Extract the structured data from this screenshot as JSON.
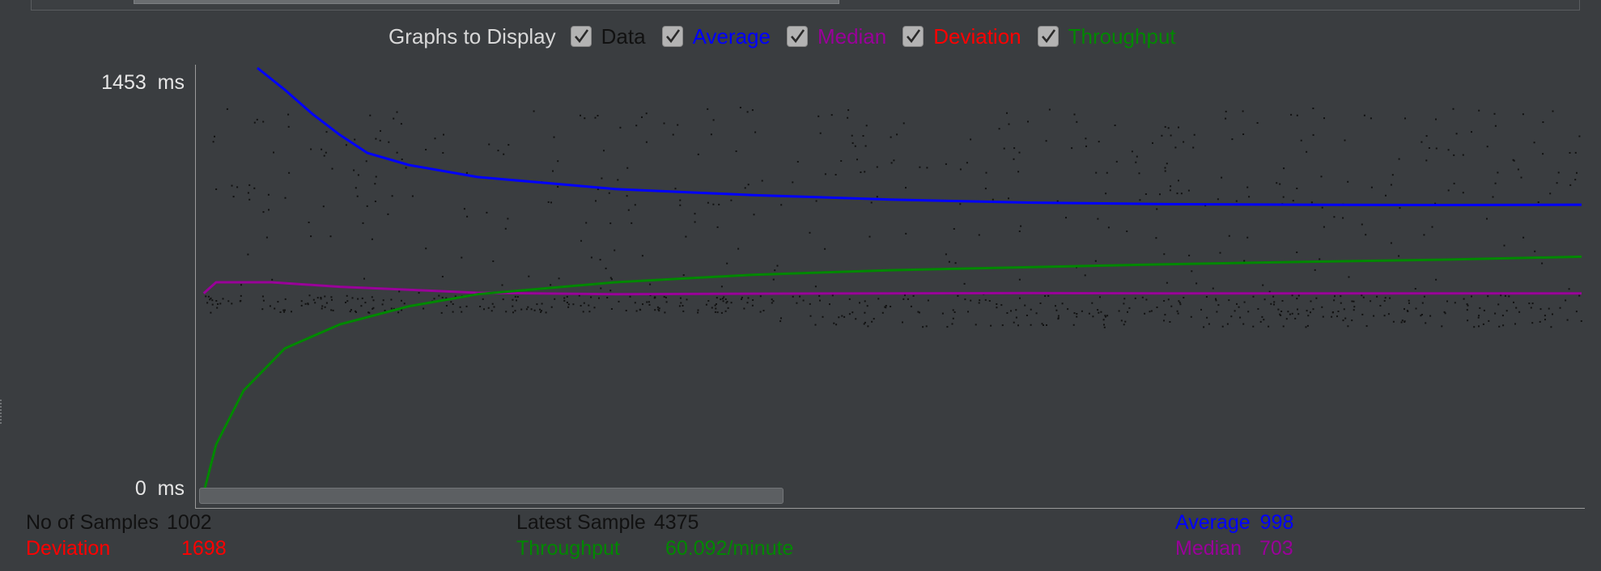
{
  "legend": {
    "title": "Graphs to Display",
    "items": [
      {
        "key": "data",
        "label": "Data",
        "color": "#111111",
        "checked": true
      },
      {
        "key": "average",
        "label": "Average",
        "color": "#0000ff",
        "checked": true
      },
      {
        "key": "median",
        "label": "Median",
        "color": "#990099",
        "checked": true
      },
      {
        "key": "deviation",
        "label": "Deviation",
        "color": "#ff0000",
        "checked": true
      },
      {
        "key": "throughput",
        "label": "Throughput",
        "color": "#008800",
        "checked": true
      }
    ]
  },
  "axis": {
    "y_max_value": "1453",
    "y_min_value": "0",
    "unit": "ms"
  },
  "stats": {
    "samples_label": "No of Samples",
    "samples_value": "1002",
    "deviation_label": "Deviation",
    "deviation_value": "1698",
    "latest_label": "Latest Sample",
    "latest_value": "4375",
    "throughput_label": "Throughput",
    "throughput_value": "60.092/minute",
    "average_label": "Average",
    "average_value": "998",
    "median_label": "Median",
    "median_value": "703"
  },
  "colors": {
    "data": "#111111",
    "average": "#0000ff",
    "median": "#990099",
    "deviation": "#ff0000",
    "throughput": "#008800",
    "label_light": "#e6e6e6"
  },
  "chart_data": {
    "type": "line",
    "ylim": [
      0,
      1453
    ],
    "samples": 1002,
    "series": [
      {
        "name": "Average",
        "x": [
          40,
          60,
          80,
          100,
          120,
          150,
          200,
          250,
          300,
          400,
          500,
          600,
          700,
          800,
          900,
          1002
        ],
        "values": [
          1453,
          1380,
          1300,
          1230,
          1170,
          1130,
          1090,
          1070,
          1050,
          1030,
          1015,
          1005,
          1000,
          998,
          997,
          998
        ]
      },
      {
        "name": "Median",
        "x": [
          1,
          10,
          50,
          100,
          150,
          200,
          300,
          400,
          500,
          600,
          700,
          800,
          900,
          1002
        ],
        "values": [
          703,
          740,
          740,
          725,
          715,
          705,
          700,
          702,
          703,
          704,
          703,
          703,
          703,
          703
        ]
      },
      {
        "name": "Throughput",
        "x": [
          1,
          10,
          30,
          60,
          100,
          150,
          200,
          300,
          400,
          500,
          600,
          700,
          800,
          900,
          1002
        ],
        "values": [
          40,
          200,
          380,
          520,
          600,
          660,
          700,
          740,
          765,
          780,
          790,
          800,
          808,
          815,
          825
        ]
      }
    ]
  }
}
